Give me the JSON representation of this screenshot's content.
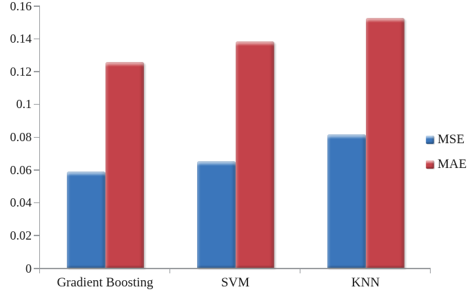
{
  "chart_data": {
    "type": "bar",
    "title": "",
    "xlabel": "",
    "ylabel": "",
    "categories": [
      "Gradient Boosting",
      "SVM",
      "KNN"
    ],
    "series": [
      {
        "name": "MSE",
        "values": [
          0.059,
          0.065,
          0.0815
        ],
        "fill": "#3b76bb",
        "light": "#7baad9",
        "dark": "#255a92"
      },
      {
        "name": "MAE",
        "values": [
          0.1255,
          0.138,
          0.1525
        ],
        "fill": "#c4424a",
        "light": "#dc7072",
        "dark": "#92282c"
      }
    ],
    "ylim": [
      0,
      0.16
    ],
    "ytick_labels": [
      "0",
      "0.02",
      "0.04",
      "0.06",
      "0.08",
      "0.1",
      "0.12",
      "0.14",
      "0.16"
    ],
    "grid": false,
    "legend_position": "right",
    "axis_color": "#9a9da0",
    "text_color": "#1a1a1a",
    "background": "#ffffff"
  }
}
